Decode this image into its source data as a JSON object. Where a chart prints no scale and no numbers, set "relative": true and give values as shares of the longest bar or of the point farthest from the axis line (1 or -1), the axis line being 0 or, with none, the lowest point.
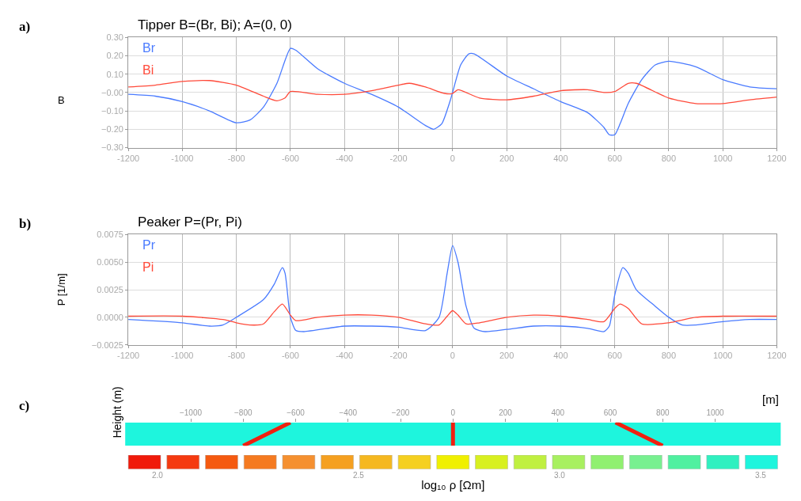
{
  "chart_data": [
    {
      "type": "line",
      "title": "Tipper B=(Br, Bi); A=(0, 0)",
      "ylabel": "B",
      "annotations": [
        "a)"
      ],
      "legend": "top left",
      "grid": true,
      "marker": "none",
      "xlim": [
        -1200,
        1200
      ],
      "xticks": [
        -1200,
        -1000,
        -800,
        -600,
        -400,
        -200,
        0,
        200,
        400,
        600,
        800,
        1000,
        1200
      ],
      "ylim": [
        -0.3,
        0.3
      ],
      "yticks": [
        {
          "value": -0.3,
          "label": "−0.30"
        },
        {
          "value": -0.2,
          "label": "−0.20"
        },
        {
          "value": -0.1,
          "label": "−0.10"
        },
        {
          "value": 0,
          "label": "−0.00"
        },
        {
          "value": 0.1,
          "label": "0.10"
        },
        {
          "value": 0.2,
          "label": "0.20"
        },
        {
          "value": 0.3,
          "label": "0.30"
        }
      ],
      "series": [
        {
          "name": "Br",
          "color": "#4a7bff",
          "x": [
            -1200,
            -1100,
            -1000,
            -900,
            -800,
            -750,
            -700,
            -650,
            -600,
            -580,
            -500,
            -400,
            -300,
            -200,
            -100,
            -70,
            -40,
            -10,
            0,
            30,
            60,
            80,
            200,
            300,
            400,
            500,
            560,
            580,
            600,
            620,
            650,
            700,
            750,
            800,
            900,
            1000,
            1100,
            1200
          ],
          "values": [
            -0.01,
            -0.02,
            -0.05,
            -0.1,
            -0.165,
            -0.15,
            -0.08,
            0.05,
            0.24,
            0.23,
            0.13,
            0.05,
            -0.01,
            -0.08,
            -0.18,
            -0.2,
            -0.17,
            -0.05,
            0.0,
            0.15,
            0.21,
            0.21,
            0.09,
            0.02,
            -0.05,
            -0.11,
            -0.19,
            -0.23,
            -0.23,
            -0.17,
            -0.06,
            0.07,
            0.15,
            0.17,
            0.14,
            0.07,
            0.03,
            0.02
          ]
        },
        {
          "name": "Bi",
          "color": "#ff4a3a",
          "x": [
            -1200,
            -1100,
            -1000,
            -900,
            -800,
            -700,
            -650,
            -620,
            -600,
            -500,
            -400,
            -300,
            -200,
            -160,
            -100,
            -30,
            0,
            20,
            100,
            200,
            300,
            400,
            500,
            560,
            600,
            650,
            680,
            800,
            900,
            1000,
            1100,
            1200
          ],
          "values": [
            0.03,
            0.04,
            0.06,
            0.065,
            0.04,
            -0.02,
            -0.045,
            -0.03,
            0.005,
            -0.01,
            -0.01,
            0.01,
            0.04,
            0.05,
            0.03,
            -0.005,
            -0.005,
            0.015,
            -0.03,
            -0.04,
            -0.02,
            0.01,
            0.015,
            0.0,
            0.005,
            0.05,
            0.05,
            -0.03,
            -0.06,
            -0.06,
            -0.04,
            -0.025
          ]
        }
      ]
    },
    {
      "type": "line",
      "title": "Peaker P=(Pr, Pi)",
      "ylabel": "P [1/m]",
      "annotations": [
        "b)"
      ],
      "legend": "top left",
      "grid": true,
      "marker": "none",
      "xlim": [
        -1200,
        1200
      ],
      "xticks": [
        -1200,
        -1000,
        -800,
        -600,
        -400,
        -200,
        0,
        200,
        400,
        600,
        800,
        1000,
        1200
      ],
      "ylim": [
        -0.0025,
        0.0075
      ],
      "yticks": [
        {
          "value": -0.0025,
          "label": "−0.0025"
        },
        {
          "value": 0,
          "label": "0.0000"
        },
        {
          "value": 0.0025,
          "label": "0.0025"
        },
        {
          "value": 0.005,
          "label": "0.0050"
        },
        {
          "value": 0.0075,
          "label": "0.0075"
        }
      ],
      "series": [
        {
          "name": "Pr",
          "color": "#4a7bff",
          "x": [
            -1200,
            -1000,
            -900,
            -850,
            -800,
            -700,
            -660,
            -630,
            -620,
            -600,
            -580,
            -550,
            -400,
            -300,
            -200,
            -100,
            -50,
            -20,
            0,
            20,
            50,
            80,
            120,
            200,
            300,
            400,
            500,
            560,
            580,
            600,
            630,
            650,
            680,
            750,
            800,
            850,
            900,
            1000,
            1100,
            1200
          ],
          "values": [
            -0.0002,
            -0.0005,
            -0.0008,
            -0.0007,
            0.0,
            0.0016,
            0.003,
            0.0045,
            0.004,
            0.0,
            -0.0012,
            -0.0013,
            -0.0008,
            -0.0008,
            -0.0009,
            -0.0012,
            0.0,
            0.004,
            0.0065,
            0.005,
            0.001,
            -0.001,
            -0.0013,
            -0.0011,
            -0.0008,
            -0.0008,
            -0.001,
            -0.0013,
            -0.0008,
            0.002,
            0.0045,
            0.004,
            0.0025,
            0.001,
            0.0,
            -0.0007,
            -0.0007,
            -0.0004,
            -0.0002,
            -0.0002
          ]
        },
        {
          "name": "Pi",
          "color": "#ff4a3a",
          "x": [
            -1200,
            -1000,
            -850,
            -800,
            -750,
            -700,
            -660,
            -630,
            -600,
            -580,
            -500,
            -400,
            -300,
            -200,
            -100,
            -50,
            -20,
            0,
            20,
            50,
            100,
            200,
            300,
            400,
            500,
            560,
            600,
            620,
            650,
            700,
            800,
            900,
            1000,
            1200
          ],
          "values": [
            0.0001,
            0.0001,
            -0.0002,
            -0.0005,
            -0.0007,
            -0.0006,
            0.0005,
            0.0012,
            0.0002,
            -0.0003,
            0.0,
            0.0002,
            0.0002,
            0.0,
            -0.0006,
            -0.0007,
            0.0001,
            0.0006,
            0.0002,
            -0.0006,
            -0.0005,
            0.0,
            0.0002,
            0.0001,
            -0.0002,
            -0.0004,
            0.0008,
            0.0012,
            0.0008,
            -0.0006,
            -0.0005,
            0.0,
            0.0001,
            0.0001
          ]
        }
      ]
    },
    {
      "type": "line",
      "ylabel": "Height (m)",
      "annotations": [
        "c)"
      ],
      "relative": true,
      "tick_labels": "x",
      "xlabel": "[m]",
      "xlim": [
        -1250,
        1250
      ],
      "xticks": [
        {
          "value": -1000,
          "label": "−1000"
        },
        {
          "value": -800,
          "label": "−800"
        },
        {
          "value": -600,
          "label": "−600"
        },
        {
          "value": -400,
          "label": "−400"
        },
        {
          "value": -200,
          "label": "−200"
        },
        0,
        200,
        400,
        600,
        800,
        1000
      ],
      "bands": [
        {
          "axis": "y",
          "from": 0,
          "to": 1,
          "color": "#1ef5dd"
        }
      ],
      "series": [
        {
          "type": "line",
          "color": "#f02010",
          "x": [
            -800,
            -620
          ],
          "values": [
            0,
            1
          ]
        },
        {
          "type": "line",
          "color": "#f02010",
          "x": [
            0,
            0
          ],
          "values": [
            0,
            1
          ]
        },
        {
          "type": "line",
          "color": "#f02010",
          "x": [
            620,
            800
          ],
          "values": [
            1,
            0
          ]
        }
      ],
      "clabel": "log₁₀ ρ [Ωm]",
      "clim": [
        1.92,
        3.55
      ],
      "cticks": [
        {
          "value": 2,
          "label": "2.0"
        },
        {
          "value": 2.5,
          "label": "2.5"
        },
        {
          "value": 3,
          "label": "3.0"
        },
        {
          "value": 3.5,
          "label": "3.5"
        }
      ],
      "colors": [
        "#f01a0a",
        "#f53a10",
        "#f55a10",
        "#f57a20",
        "#f59030",
        "#f5a020",
        "#f5b820",
        "#f5d020",
        "#f0f000",
        "#d8f020",
        "#c0f040",
        "#a8f060",
        "#90f070",
        "#78f090",
        "#50f0a0",
        "#30f0c0",
        "#1ef5dd"
      ]
    }
  ]
}
